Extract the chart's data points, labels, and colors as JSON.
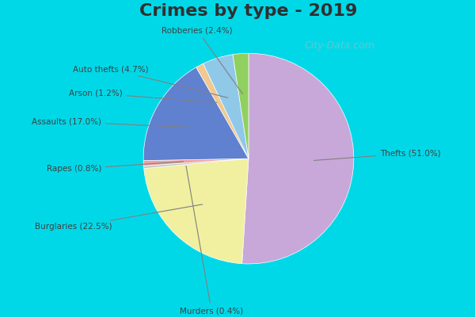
{
  "title": "Crimes by type - 2019",
  "categories": [
    "Thefts",
    "Burglaries",
    "Murders",
    "Rapes",
    "Assaults",
    "Arson",
    "Auto thefts",
    "Robberies"
  ],
  "values": [
    51.0,
    22.5,
    0.4,
    0.8,
    17.0,
    1.2,
    4.7,
    2.4
  ],
  "colors": [
    "#c8a8d8",
    "#f0f0a0",
    "#c8c8c8",
    "#f0a0a0",
    "#6080d0",
    "#f0c890",
    "#90c8e8",
    "#90d060"
  ],
  "labels": [
    "Thefts (51.0%)",
    "Burglaries (22.5%)",
    "Murders (0.4%)",
    "Rapes (0.8%)",
    "Assaults (17.0%)",
    "Arson (1.2%)",
    "Auto thefts (4.7%)",
    "Robberies (2.4%)"
  ],
  "title_fontsize": 16,
  "bg_color_outer": "#00d8e8",
  "bg_color_inner": "#d8ecd8",
  "watermark": "City-Data.com",
  "startangle": 90
}
